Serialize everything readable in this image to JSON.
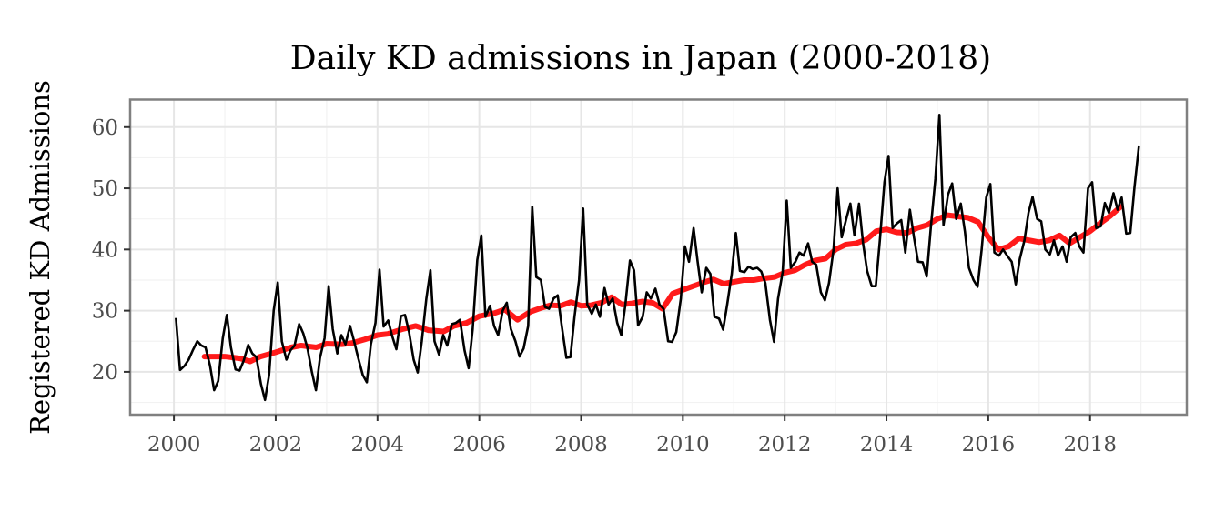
{
  "chart_data": {
    "type": "line",
    "title": "Daily KD admissions in Japan (2000-2018)",
    "xlabel": "",
    "ylabel": "Registered KD Admissions",
    "xlim": [
      1999.14,
      2019.9
    ],
    "ylim": [
      13,
      64.5
    ],
    "x_ticks": [
      2000,
      2002,
      2004,
      2006,
      2008,
      2010,
      2012,
      2014,
      2016,
      2018
    ],
    "x_tick_labels": [
      "2000",
      "2002",
      "2004",
      "2006",
      "2008",
      "2010",
      "2012",
      "2014",
      "2016",
      "2018"
    ],
    "y_ticks": [
      20,
      30,
      40,
      50,
      60
    ],
    "y_tick_labels": [
      "20",
      "30",
      "40",
      "50",
      "60"
    ],
    "grid": true,
    "series": [
      {
        "color": "#000000",
        "x": [
          2000.04,
          2000.12,
          2000.21,
          2000.29,
          2000.37,
          2000.46,
          2000.54,
          2000.62,
          2000.71,
          2000.79,
          2000.87,
          2000.96,
          2001.04,
          2001.12,
          2001.21,
          2001.29,
          2001.37,
          2001.46,
          2001.54,
          2001.62,
          2001.71,
          2001.79,
          2001.87,
          2001.96,
          2002.04,
          2002.12,
          2002.21,
          2002.29,
          2002.37,
          2002.46,
          2002.54,
          2002.62,
          2002.71,
          2002.79,
          2002.87,
          2002.96,
          2003.04,
          2003.12,
          2003.21,
          2003.29,
          2003.37,
          2003.46,
          2003.54,
          2003.62,
          2003.71,
          2003.79,
          2003.87,
          2003.96,
          2004.04,
          2004.12,
          2004.21,
          2004.29,
          2004.37,
          2004.46,
          2004.54,
          2004.62,
          2004.71,
          2004.79,
          2004.87,
          2004.96,
          2005.04,
          2005.12,
          2005.21,
          2005.29,
          2005.37,
          2005.46,
          2005.54,
          2005.62,
          2005.71,
          2005.79,
          2005.87,
          2005.96,
          2006.04,
          2006.12,
          2006.21,
          2006.29,
          2006.37,
          2006.46,
          2006.54,
          2006.62,
          2006.71,
          2006.79,
          2006.87,
          2006.96,
          2007.04,
          2007.12,
          2007.21,
          2007.29,
          2007.37,
          2007.46,
          2007.54,
          2007.62,
          2007.71,
          2007.79,
          2007.87,
          2007.96,
          2008.04,
          2008.12,
          2008.21,
          2008.29,
          2008.37,
          2008.46,
          2008.54,
          2008.62,
          2008.71,
          2008.79,
          2008.87,
          2008.96,
          2009.04,
          2009.12,
          2009.21,
          2009.29,
          2009.37,
          2009.46,
          2009.54,
          2009.62,
          2009.71,
          2009.79,
          2009.87,
          2009.96,
          2010.04,
          2010.12,
          2010.21,
          2010.29,
          2010.37,
          2010.46,
          2010.54,
          2010.62,
          2010.71,
          2010.79,
          2010.87,
          2010.96,
          2011.04,
          2011.12,
          2011.21,
          2011.29,
          2011.37,
          2011.46,
          2011.54,
          2011.62,
          2011.71,
          2011.79,
          2011.87,
          2011.96,
          2012.04,
          2012.12,
          2012.21,
          2012.29,
          2012.37,
          2012.46,
          2012.54,
          2012.62,
          2012.71,
          2012.79,
          2012.87,
          2012.96,
          2013.04,
          2013.12,
          2013.21,
          2013.29,
          2013.37,
          2013.46,
          2013.54,
          2013.62,
          2013.71,
          2013.79,
          2013.87,
          2013.96,
          2014.04,
          2014.12,
          2014.21,
          2014.29,
          2014.37,
          2014.46,
          2014.54,
          2014.62,
          2014.71,
          2014.79,
          2014.87,
          2014.96,
          2015.04,
          2015.12,
          2015.21,
          2015.29,
          2015.37,
          2015.46,
          2015.54,
          2015.62,
          2015.71,
          2015.79,
          2015.87,
          2015.96,
          2016.04,
          2016.12,
          2016.21,
          2016.29,
          2016.37,
          2016.46,
          2016.54,
          2016.62,
          2016.71,
          2016.79,
          2016.87,
          2016.96,
          2017.04,
          2017.12,
          2017.21,
          2017.29,
          2017.37,
          2017.46,
          2017.54,
          2017.62,
          2017.71,
          2017.79,
          2017.87,
          2017.96,
          2018.04,
          2018.12,
          2018.21,
          2018.29,
          2018.37,
          2018.46,
          2018.54,
          2018.62,
          2018.71,
          2018.79,
          2018.87,
          2018.96
        ],
        "y": [
          28.8,
          20.3,
          21.0,
          22.0,
          23.5,
          25.0,
          24.3,
          24.0,
          21.0,
          17.0,
          18.5,
          25.5,
          29.3,
          24.0,
          20.4,
          20.2,
          21.8,
          24.4,
          23.0,
          22.4,
          18.0,
          15.4,
          19.5,
          30.0,
          34.6,
          25.0,
          22.0,
          23.5,
          24.3,
          27.8,
          26.3,
          24.0,
          20.0,
          17.0,
          22.3,
          25.5,
          34.0,
          27.0,
          23.0,
          26.0,
          24.5,
          27.5,
          25.0,
          22.3,
          19.5,
          18.3,
          24.5,
          28.0,
          36.7,
          27.4,
          28.4,
          25.8,
          23.7,
          29.1,
          29.3,
          26.5,
          22.0,
          19.9,
          25.0,
          32.0,
          36.6,
          25.0,
          22.8,
          26.0,
          24.3,
          27.8,
          28.0,
          28.5,
          23.5,
          20.6,
          27.0,
          38.3,
          42.3,
          29.0,
          30.8,
          27.5,
          26.0,
          30.0,
          31.3,
          27.0,
          25.0,
          22.5,
          23.8,
          27.5,
          47.0,
          35.5,
          35.0,
          30.6,
          30.3,
          32.0,
          32.5,
          27.5,
          22.3,
          22.4,
          29.0,
          35.0,
          46.7,
          31.0,
          29.5,
          31.0,
          29.0,
          33.7,
          31.0,
          32.0,
          28.0,
          26.0,
          31.0,
          38.2,
          36.6,
          27.6,
          29.0,
          33.0,
          32.0,
          33.6,
          31.0,
          30.3,
          25.0,
          24.9,
          26.5,
          32.0,
          40.5,
          38.0,
          43.5,
          38.0,
          33.0,
          37.0,
          36.0,
          29.0,
          28.7,
          26.9,
          31.0,
          36.0,
          42.7,
          36.5,
          36.3,
          37.2,
          36.8,
          37.0,
          36.4,
          34.5,
          28.5,
          24.9,
          32.0,
          36.3,
          48.0,
          37.0,
          38.0,
          39.5,
          39.0,
          41.0,
          38.0,
          37.5,
          33.0,
          31.7,
          34.5,
          40.0,
          50.0,
          42.0,
          45.0,
          47.5,
          42.3,
          47.5,
          41.0,
          36.5,
          34.0,
          34.0,
          41.5,
          51.0,
          55.3,
          43.5,
          44.3,
          44.8,
          39.5,
          46.5,
          42.0,
          38.0,
          37.9,
          35.6,
          43.5,
          51.5,
          62.0,
          44.0,
          49.0,
          50.8,
          45.0,
          47.5,
          43.0,
          37.0,
          35.0,
          33.9,
          40.0,
          48.5,
          50.7,
          39.5,
          39.0,
          40.0,
          39.0,
          38.0,
          34.3,
          38.5,
          41.5,
          46.0,
          48.6,
          45.0,
          44.6,
          40.0,
          39.2,
          41.5,
          39.0,
          40.5,
          38.0,
          42.0,
          42.7,
          40.5,
          39.5,
          50.0,
          51.0,
          43.5,
          43.8,
          47.6,
          46.0,
          49.2,
          46.5,
          48.5,
          42.6,
          42.7,
          50.0,
          57.0
        ]
      },
      {
        "color": "#ff1a1a",
        "x": [
          2000.6,
          2001.0,
          2001.3,
          2001.5,
          2001.7,
          2002.0,
          2002.3,
          2002.5,
          2002.8,
          2003.0,
          2003.3,
          2003.5,
          2003.75,
          2004.0,
          2004.2,
          2004.5,
          2004.75,
          2005.0,
          2005.3,
          2005.5,
          2005.75,
          2006.0,
          2006.3,
          2006.5,
          2006.75,
          2007.0,
          2007.2,
          2007.4,
          2007.6,
          2007.8,
          2008.0,
          2008.2,
          2008.4,
          2008.6,
          2008.8,
          2009.0,
          2009.2,
          2009.4,
          2009.6,
          2009.8,
          2010.0,
          2010.2,
          2010.4,
          2010.6,
          2010.8,
          2011.0,
          2011.2,
          2011.4,
          2011.6,
          2011.8,
          2012.0,
          2012.2,
          2012.4,
          2012.6,
          2012.8,
          2013.0,
          2013.2,
          2013.4,
          2013.6,
          2013.8,
          2014.0,
          2014.2,
          2014.4,
          2014.6,
          2014.8,
          2015.0,
          2015.2,
          2015.4,
          2015.6,
          2015.8,
          2016.0,
          2016.2,
          2016.4,
          2016.6,
          2016.8,
          2017.0,
          2017.2,
          2017.4,
          2017.6,
          2017.8,
          2018.0,
          2018.2,
          2018.4,
          2018.6
        ],
        "y": [
          22.5,
          22.5,
          22.2,
          21.7,
          22.5,
          23.2,
          24.0,
          24.3,
          24.0,
          24.6,
          24.5,
          24.7,
          25.3,
          26.0,
          26.2,
          27.0,
          27.5,
          26.8,
          26.6,
          27.5,
          28.0,
          29.1,
          29.6,
          30.2,
          28.5,
          29.8,
          30.4,
          30.9,
          30.8,
          31.4,
          30.8,
          30.9,
          31.3,
          32.2,
          31.0,
          31.2,
          31.5,
          31.3,
          30.3,
          32.8,
          33.4,
          34.0,
          34.6,
          35.1,
          34.4,
          34.7,
          35.0,
          35.0,
          35.3,
          35.5,
          36.2,
          36.6,
          37.5,
          38.2,
          38.5,
          40.0,
          40.8,
          41.0,
          41.6,
          43.0,
          43.3,
          42.8,
          42.7,
          43.5,
          44.0,
          45.0,
          45.6,
          45.4,
          45.2,
          44.5,
          42.0,
          40.0,
          40.5,
          41.8,
          41.5,
          41.2,
          41.5,
          42.3,
          41.0,
          42.0,
          43.0,
          44.3,
          45.5,
          47.0
        ]
      }
    ]
  }
}
